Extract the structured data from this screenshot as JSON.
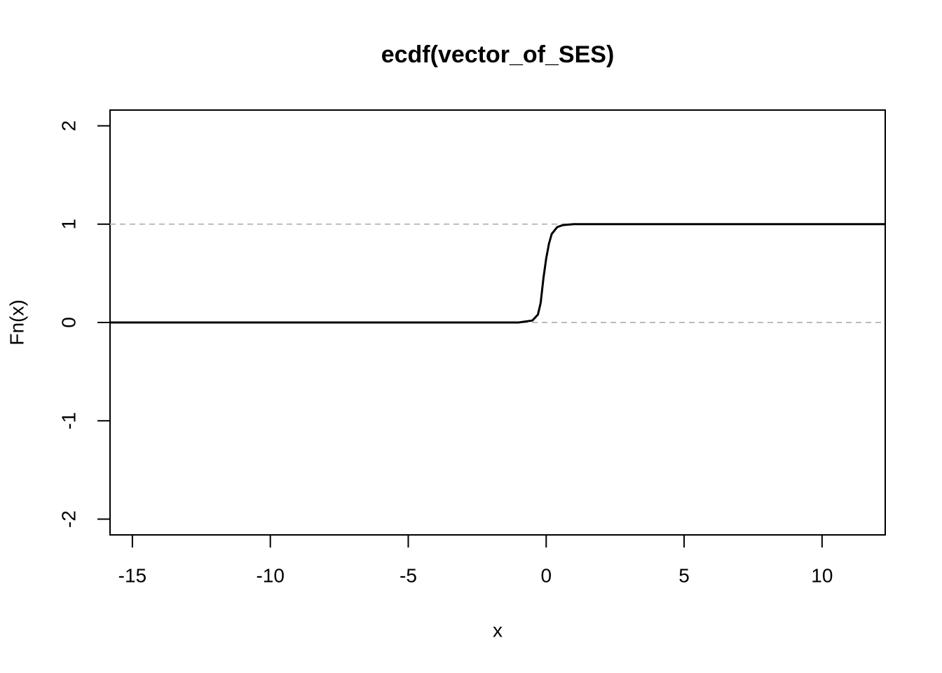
{
  "chart_data": {
    "type": "line",
    "title": "ecdf(vector_of_SES)",
    "x_label": "x",
    "y_label": "Fn(x)",
    "x": [
      -15.81,
      -1.0,
      -0.5,
      -0.3,
      -0.2,
      -0.1,
      0.0,
      0.1,
      0.2,
      0.4,
      0.6,
      1.0,
      12.29
    ],
    "series": [
      {
        "name": "Fn(x)",
        "color": "#000000",
        "values": [
          0,
          0,
          0.02,
          0.08,
          0.2,
          0.45,
          0.65,
          0.8,
          0.9,
          0.97,
          0.99,
          1,
          1
        ]
      }
    ],
    "hlines": [
      0,
      1
    ],
    "hline_color": "#bbbbbb",
    "xlim": [
      -15.81,
      12.29
    ],
    "ylim": [
      -2.16,
      2.16
    ],
    "xticks": [
      -15,
      -10,
      -5,
      0,
      5,
      10
    ],
    "yticks": [
      -2,
      -1,
      0,
      1,
      2
    ]
  }
}
